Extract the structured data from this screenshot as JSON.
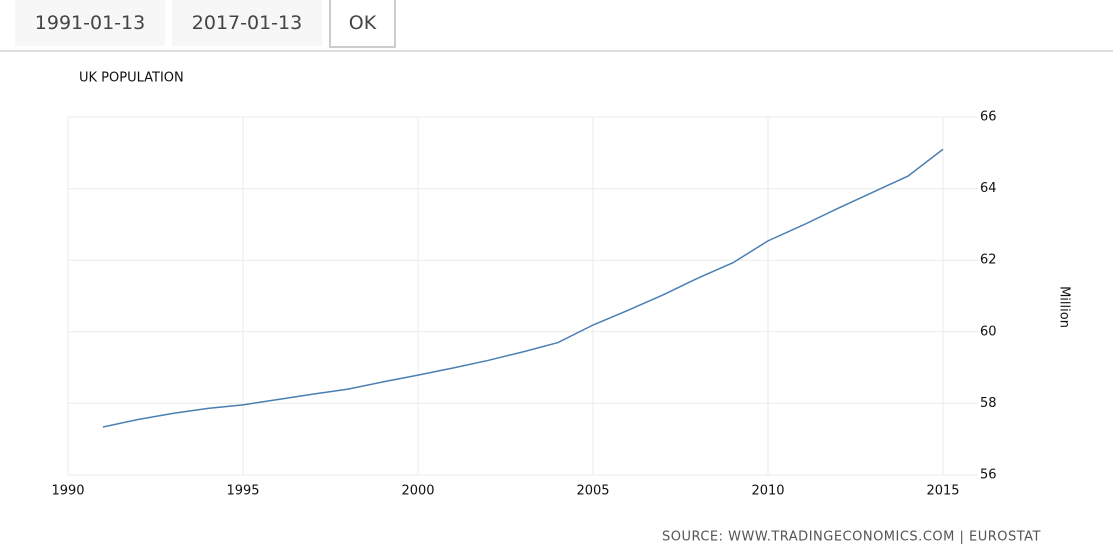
{
  "controls": {
    "start_date": "1991-01-13",
    "end_date": "2017-01-13",
    "ok": "OK"
  },
  "chart_data": {
    "type": "line",
    "title": "UK POPULATION",
    "y_label": "Million",
    "source": "SOURCE: WWW.TRADINGECONOMICS.COM | EUROSTAT",
    "x": [
      1991,
      1992,
      1993,
      1994,
      1995,
      1996,
      1997,
      1998,
      1999,
      2000,
      2001,
      2002,
      2003,
      2004,
      2005,
      2006,
      2007,
      2008,
      2009,
      2010,
      2011,
      2012,
      2013,
      2014,
      2015
    ],
    "series": [
      {
        "name": "UK Population",
        "color": "#4a7fb3",
        "values": [
          57.34,
          57.55,
          57.72,
          57.86,
          57.96,
          58.11,
          58.26,
          58.4,
          58.6,
          58.79,
          58.99,
          59.2,
          59.44,
          59.7,
          60.19,
          60.6,
          61.03,
          61.5,
          61.93,
          62.54,
          62.98,
          63.45,
          63.9,
          64.35,
          65.1
        ]
      }
    ],
    "xlim": [
      1990,
      2016
    ],
    "ylim": [
      56,
      66
    ],
    "xticks": [
      1990,
      1995,
      2000,
      2005,
      2010,
      2015
    ],
    "yticks": [
      56,
      58,
      60,
      62,
      64,
      66
    ],
    "grid": true
  }
}
